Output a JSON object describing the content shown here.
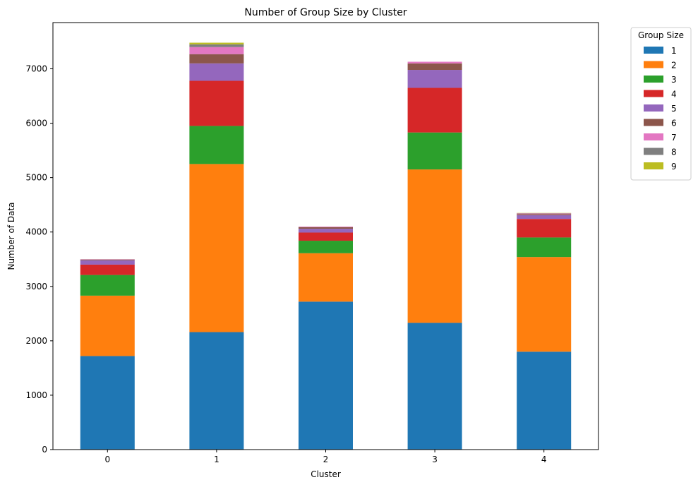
{
  "chart_data": {
    "type": "bar",
    "stacked": true,
    "title": "Number of Group Size by Cluster",
    "xlabel": "Cluster",
    "ylabel": "Number of Data",
    "categories": [
      "0",
      "1",
      "2",
      "3",
      "4"
    ],
    "ylim": [
      0,
      7850
    ],
    "yticks": [
      0,
      1000,
      2000,
      3000,
      4000,
      5000,
      6000,
      7000
    ],
    "grid": false,
    "legend": {
      "title": "Group Size",
      "placement": "outside-top-right"
    },
    "series": [
      {
        "name": "1",
        "color": "#1f77b4",
        "values": [
          1720,
          2160,
          2720,
          2330,
          1800
        ]
      },
      {
        "name": "2",
        "color": "#ff7f0e",
        "values": [
          1110,
          3090,
          890,
          2820,
          1740
        ]
      },
      {
        "name": "3",
        "color": "#2ca02c",
        "values": [
          380,
          700,
          230,
          680,
          360
        ]
      },
      {
        "name": "4",
        "color": "#d62728",
        "values": [
          190,
          830,
          150,
          820,
          340
        ]
      },
      {
        "name": "5",
        "color": "#9467bd",
        "values": [
          80,
          320,
          70,
          330,
          70
        ]
      },
      {
        "name": "6",
        "color": "#8c564b",
        "values": [
          15,
          170,
          30,
          120,
          20
        ]
      },
      {
        "name": "7",
        "color": "#e377c2",
        "values": [
          5,
          130,
          10,
          30,
          10
        ]
      },
      {
        "name": "8",
        "color": "#7f7f7f",
        "values": [
          0,
          50,
          0,
          0,
          5
        ]
      },
      {
        "name": "9",
        "color": "#bcbd22",
        "values": [
          0,
          30,
          0,
          0,
          5
        ]
      }
    ]
  }
}
